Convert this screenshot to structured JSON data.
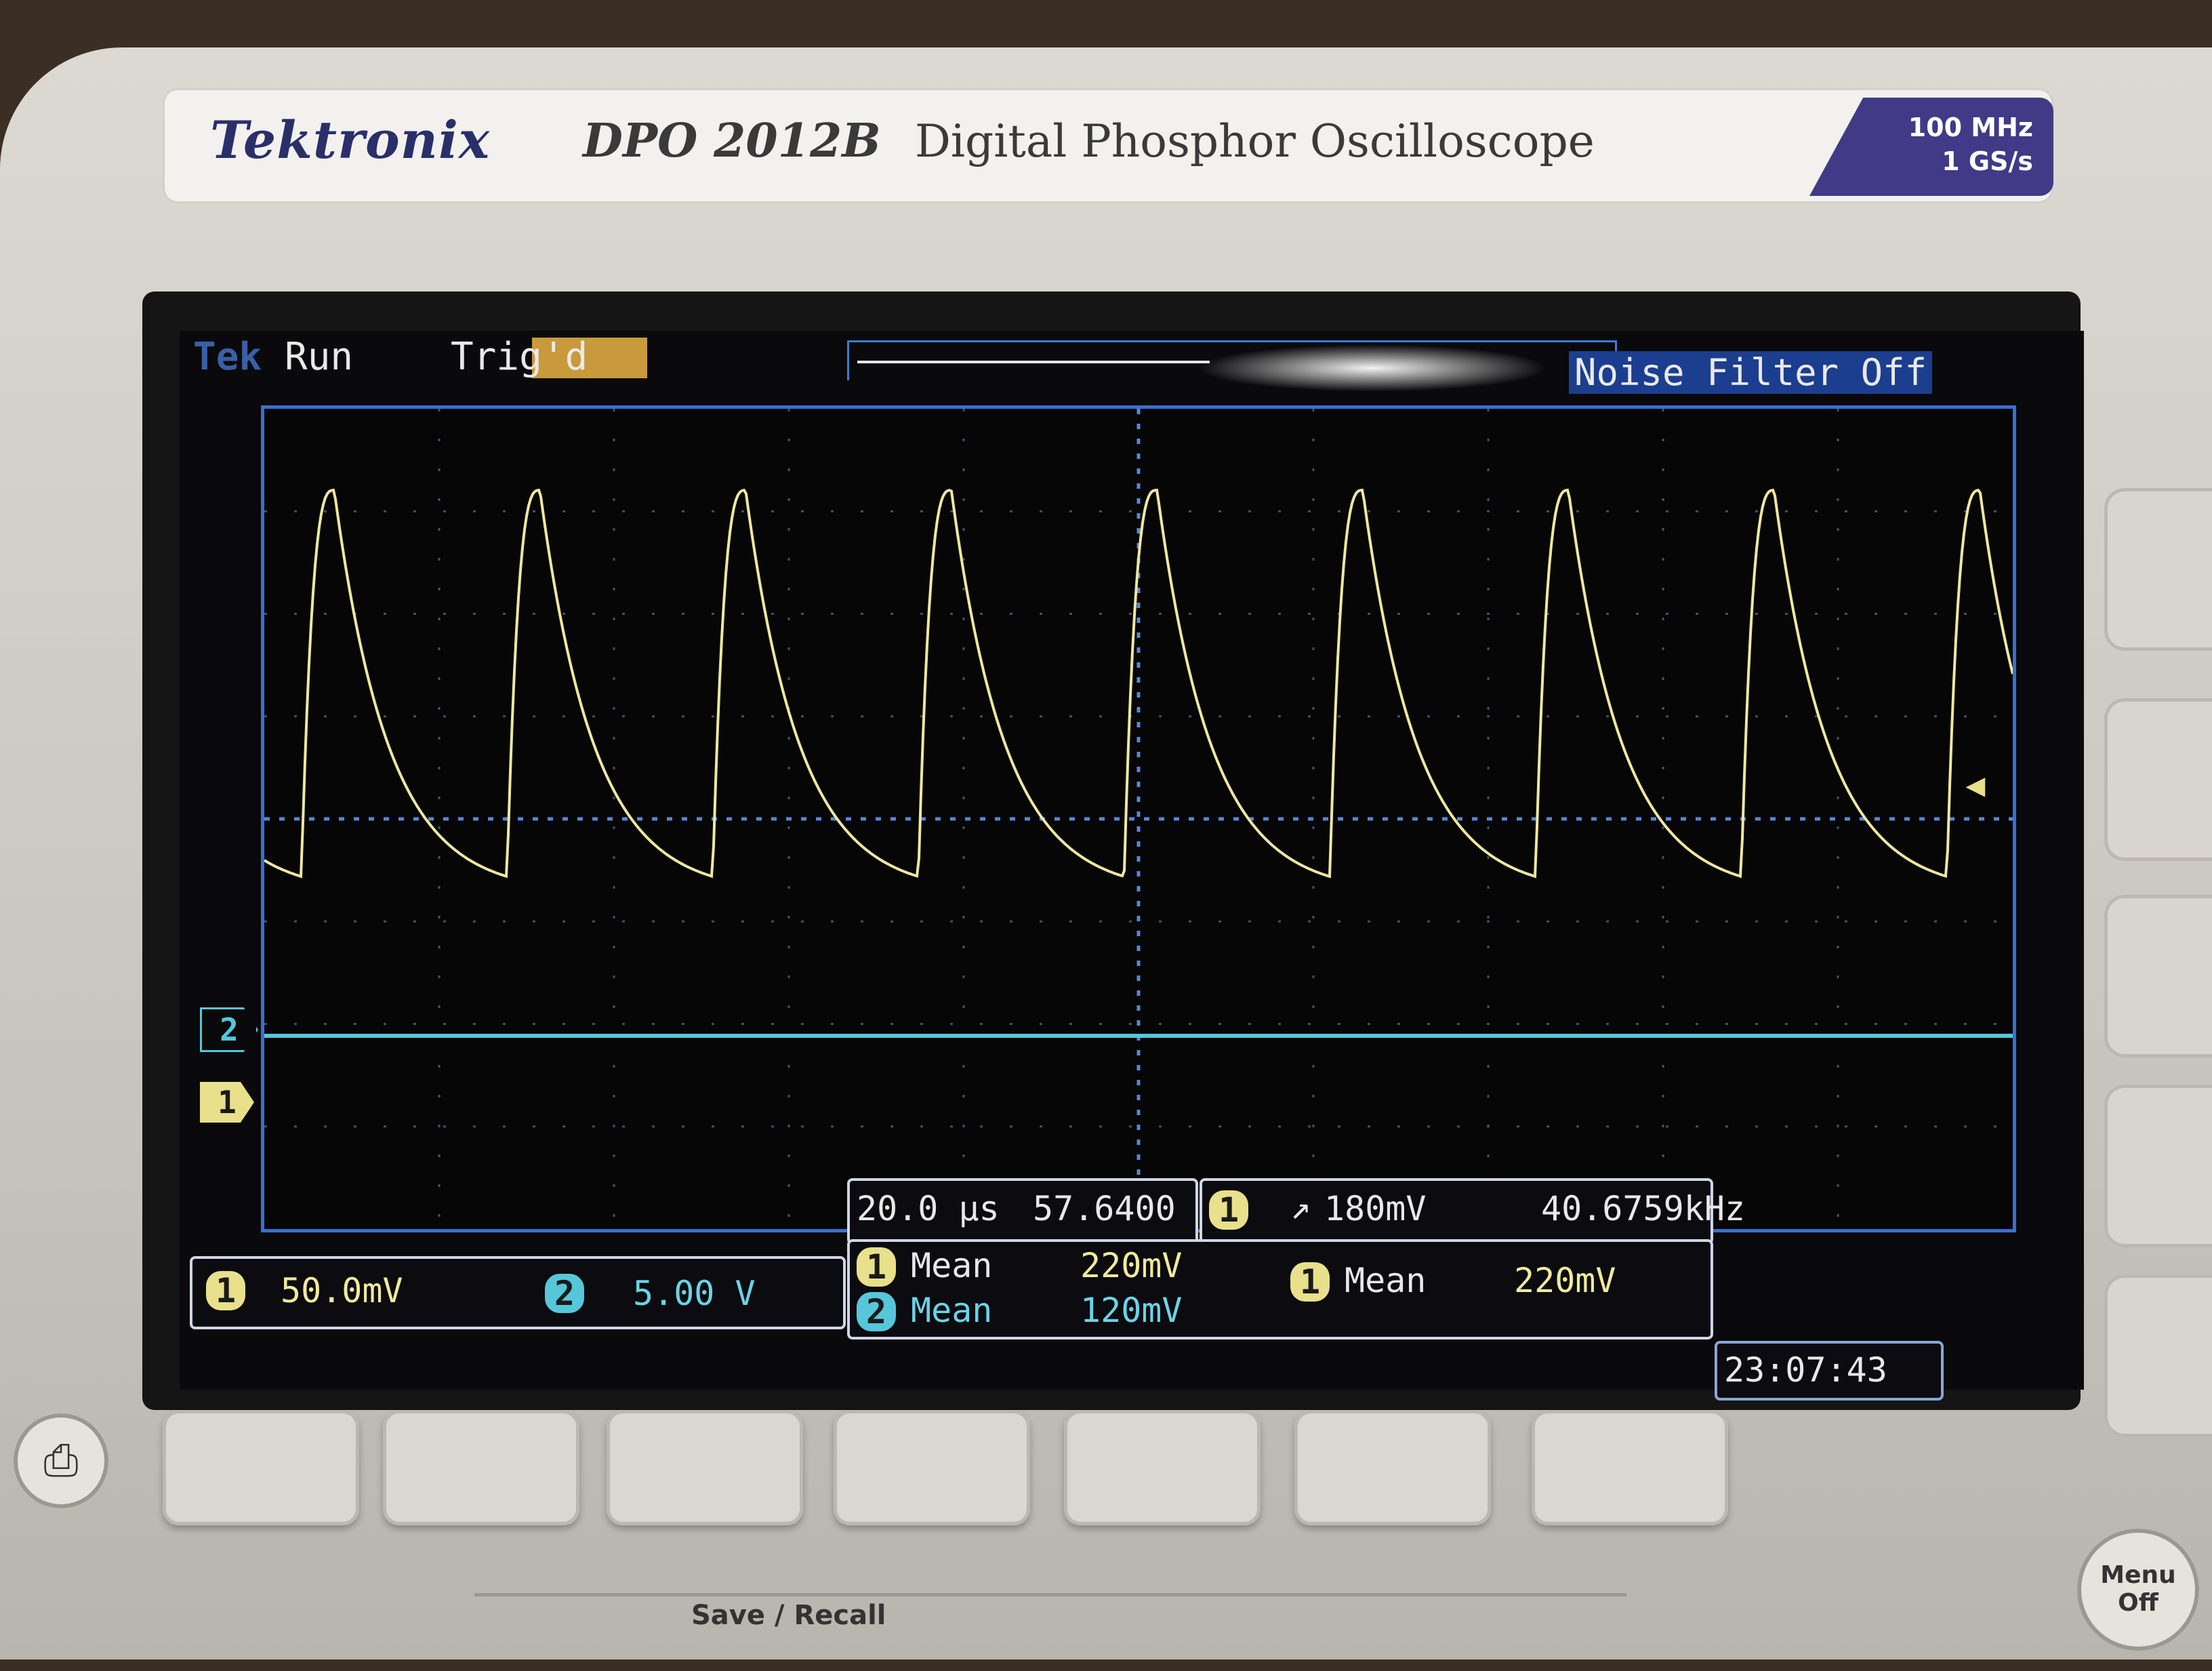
{
  "label_plate": {
    "brand": "Tektronix",
    "model": "DPO 2012B",
    "description": "Digital Phosphor Oscilloscope",
    "bandwidth": "100 MHz",
    "sample_rate": "1 GS/s"
  },
  "status_bar": {
    "logo": "Tek",
    "run_state": "Run",
    "trigger_state": "Trig'd",
    "noise_filter": "Noise Filter Off"
  },
  "markers": {
    "ch2": "2",
    "ch1": "1",
    "trigger_level_icon": "arrow-left-icon"
  },
  "channel_scales": {
    "ch1_label": "1",
    "ch1_scale": "50.0mV",
    "ch2_label": "2",
    "ch2_scale": "5.00 V"
  },
  "timebase": {
    "scale": "20.0 µs",
    "position": "57.6400 µs"
  },
  "trigger": {
    "source": "1",
    "slope_icon": "rising-edge-icon",
    "level": "180mV",
    "frequency": "40.6759kHz"
  },
  "measurements": [
    {
      "channel": "1",
      "type": "Mean",
      "value": "220mV"
    },
    {
      "channel": "2",
      "type": "Mean",
      "value": "120mV"
    },
    {
      "channel": "1",
      "type": "Mean",
      "value": "220mV"
    }
  ],
  "clock": "23:07:43",
  "buttons": {
    "save_recall": "Save / Recall",
    "menu_off_line1": "Menu",
    "menu_off_line2": "Off",
    "print_icon": "printer-icon"
  },
  "colors": {
    "ch1": "#e8e08a",
    "ch2": "#56c7d9",
    "graticule_border": "#3a6fd0"
  },
  "waveform": {
    "ch1_shape": "periodic exponential decay (sawtooth-like)",
    "cycles_visible": 8.5
  }
}
